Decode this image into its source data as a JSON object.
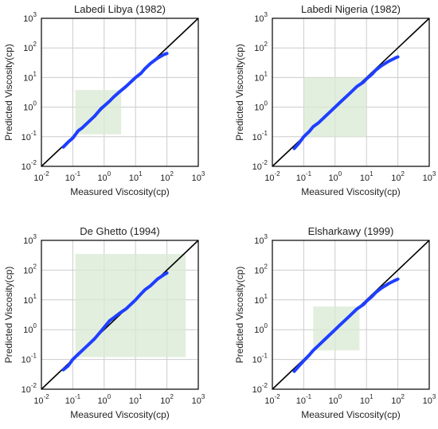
{
  "figure": {
    "panels": [
      {
        "title": "Labedi Libya (1982)",
        "xlabel": "Measured Viscosity(cp)",
        "ylabel": "Predicted Viscosity(cp)",
        "ticks": [
          "10",
          "10",
          "10",
          "10",
          "10",
          "10"
        ],
        "exponents": [
          "-2",
          "-1",
          "0",
          "1",
          "2",
          "3"
        ]
      },
      {
        "title": "Labedi Nigeria (1982)",
        "xlabel": "Measured Viscosity(cp)",
        "ylabel": "Predicted Viscosity(cp)",
        "ticks": [
          "10",
          "10",
          "10",
          "10",
          "10",
          "10"
        ],
        "exponents": [
          "-2",
          "-1",
          "0",
          "1",
          "2",
          "3"
        ]
      },
      {
        "title": "De Ghetto (1994)",
        "xlabel": "Measured Viscosity(cp)",
        "ylabel": "Predicted Viscosity(cp)",
        "ticks": [
          "10",
          "10",
          "10",
          "10",
          "10",
          "10"
        ],
        "exponents": [
          "-2",
          "-1",
          "0",
          "1",
          "2",
          "3"
        ]
      },
      {
        "title": "Elsharkawy (1999)",
        "xlabel": "Measured Viscosity(cp)",
        "ylabel": "Predicted Viscosity(cp)",
        "ticks": [
          "10",
          "10",
          "10",
          "10",
          "10",
          "10"
        ],
        "exponents": [
          "-2",
          "-1",
          "0",
          "1",
          "2",
          "3"
        ]
      }
    ]
  },
  "colors": {
    "series": "#1f3fff",
    "identity_line": "#000000",
    "shaded_region": "#d9ead3",
    "grid": "#cccccc",
    "frame": "#000000"
  },
  "chart_data": [
    {
      "type": "line",
      "title": "Labedi Libya (1982)",
      "xlabel": "Measured Viscosity(cp)",
      "ylabel": "Predicted Viscosity(cp)",
      "xscale": "log",
      "yscale": "log",
      "xlim": [
        0.01,
        1000
      ],
      "ylim": [
        0.01,
        1000
      ],
      "grid": true,
      "identity_line": true,
      "shaded_region": {
        "x": [
          0.12,
          3.5
        ],
        "y": [
          0.12,
          3.8
        ]
      },
      "series": [
        {
          "x": [
            0.05,
            0.07,
            0.1,
            0.15,
            0.2,
            0.3,
            0.5,
            0.8,
            1,
            1.5,
            2,
            3,
            5,
            8,
            10,
            15,
            20,
            30,
            50,
            80,
            100
          ],
          "y": [
            0.045,
            0.065,
            0.09,
            0.16,
            0.2,
            0.3,
            0.5,
            0.9,
            1.1,
            1.6,
            2.2,
            3.2,
            5,
            8,
            10,
            14,
            20,
            30,
            45,
            60,
            65
          ]
        }
      ]
    },
    {
      "type": "line",
      "title": "Labedi Nigeria (1982)",
      "xlabel": "Measured Viscosity(cp)",
      "ylabel": "Predicted Viscosity(cp)",
      "xscale": "log",
      "yscale": "log",
      "xlim": [
        0.01,
        1000
      ],
      "ylim": [
        0.01,
        1000
      ],
      "grid": true,
      "identity_line": true,
      "shaded_region": {
        "x": [
          0.1,
          10
        ],
        "y": [
          0.1,
          10
        ]
      },
      "series": [
        {
          "x": [
            0.05,
            0.07,
            0.1,
            0.15,
            0.2,
            0.3,
            0.5,
            0.8,
            1,
            1.5,
            2,
            3,
            5,
            8,
            10,
            15,
            20,
            30,
            50,
            80,
            100
          ],
          "y": [
            0.04,
            0.06,
            0.1,
            0.15,
            0.22,
            0.3,
            0.5,
            0.8,
            1.0,
            1.5,
            2,
            3,
            5,
            7,
            9,
            13,
            18,
            25,
            35,
            45,
            50
          ]
        }
      ]
    },
    {
      "type": "line",
      "title": "De Ghetto (1994)",
      "xlabel": "Measured Viscosity(cp)",
      "ylabel": "Predicted Viscosity(cp)",
      "xscale": "log",
      "yscale": "log",
      "xlim": [
        0.01,
        1000
      ],
      "ylim": [
        0.01,
        1000
      ],
      "grid": true,
      "identity_line": true,
      "shaded_region": {
        "x": [
          0.12,
          400
        ],
        "y": [
          0.12,
          350
        ]
      },
      "series": [
        {
          "x": [
            0.05,
            0.07,
            0.1,
            0.15,
            0.2,
            0.3,
            0.5,
            0.8,
            1,
            1.5,
            2,
            3,
            5,
            8,
            10,
            15,
            20,
            30,
            50,
            80,
            100
          ],
          "y": [
            0.045,
            0.06,
            0.1,
            0.15,
            0.2,
            0.3,
            0.5,
            0.9,
            1.2,
            2,
            2.5,
            3.5,
            5,
            8,
            10,
            16,
            22,
            30,
            50,
            70,
            80
          ]
        }
      ]
    },
    {
      "type": "line",
      "title": "Elsharkawy (1999)",
      "xlabel": "Measured Viscosity(cp)",
      "ylabel": "Predicted Viscosity(cp)",
      "xscale": "log",
      "yscale": "log",
      "xlim": [
        0.01,
        1000
      ],
      "ylim": [
        0.01,
        1000
      ],
      "grid": true,
      "identity_line": true,
      "shaded_region": {
        "x": [
          0.2,
          6
        ],
        "y": [
          0.2,
          6
        ]
      },
      "series": [
        {
          "x": [
            0.05,
            0.07,
            0.1,
            0.15,
            0.2,
            0.3,
            0.5,
            0.8,
            1,
            1.5,
            2,
            3,
            5,
            8,
            10,
            15,
            20,
            30,
            50,
            80,
            100
          ],
          "y": [
            0.04,
            0.06,
            0.09,
            0.14,
            0.2,
            0.3,
            0.5,
            0.8,
            1.0,
            1.5,
            2,
            3,
            5,
            7,
            9,
            13,
            18,
            25,
            35,
            45,
            50
          ]
        }
      ]
    }
  ]
}
